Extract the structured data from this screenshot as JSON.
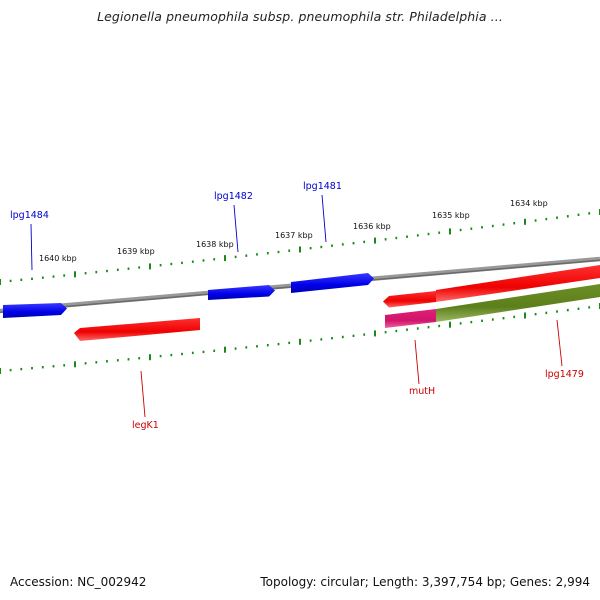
{
  "title": "Legionella pneumophila subsp. pneumophila str. Philadelphia ...",
  "footer": {
    "accession": "Accession: NC_002942",
    "summary": "Topology: circular; Length: 3,397,754 bp; Genes: 2,994"
  },
  "colors": {
    "backbone": "#8a8a8a",
    "tick": "#1a8a1a",
    "gene_blue": "#0000ee",
    "gene_red": "#ee0000",
    "gene_magenta": "#e0207a",
    "gene_olive": "#6b8e23",
    "label_blue": "#0000cc",
    "label_red": "#cc0000"
  },
  "scale_labels": [
    "1640 kbp",
    "1639 kbp",
    "1638 kbp",
    "1637 kbp",
    "1636 kbp",
    "1635 kbp",
    "1634 kbp"
  ],
  "genes": [
    {
      "name": "lpg1484",
      "strand": "forward",
      "color": "blue",
      "labeled": true
    },
    {
      "name": "lpg1482",
      "strand": "forward",
      "color": "blue",
      "labeled": true
    },
    {
      "name": "lpg1481",
      "strand": "forward",
      "color": "blue",
      "labeled": true
    },
    {
      "name": "legK1",
      "strand": "reverse",
      "color": "red",
      "labeled": true
    },
    {
      "name": "",
      "strand": "reverse",
      "color": "red",
      "labeled": false
    },
    {
      "name": "",
      "strand": "reverse",
      "color": "red",
      "labeled": false
    },
    {
      "name": "mutH",
      "strand": "reverse",
      "color": "magenta",
      "labeled": true
    },
    {
      "name": "lpg1479",
      "strand": "reverse",
      "color": "olive",
      "labeled": true
    }
  ]
}
